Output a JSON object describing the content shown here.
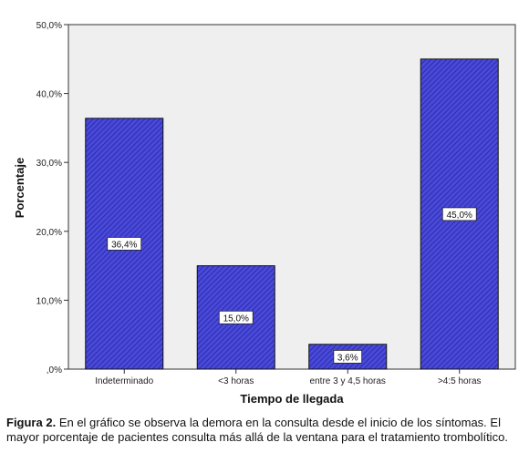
{
  "chart_data": {
    "type": "bar",
    "categories": [
      "Indeterminado",
      "<3 horas",
      "entre 3 y 4,5 horas",
      ">4:5 horas"
    ],
    "values": [
      36.4,
      15.0,
      3.6,
      45.0
    ],
    "data_labels": [
      "36,4%",
      "15,0%",
      "3,6%",
      "45,0%"
    ],
    "xlabel": "Tiempo de llegada",
    "ylabel": "Porcentaje",
    "ylim": [
      0,
      50
    ],
    "yticks": [
      0,
      10,
      20,
      30,
      40,
      50
    ],
    "ytick_labels": [
      ",0%",
      "10,0%",
      "20,0%",
      "30,0%",
      "40,0%",
      "50,0%"
    ],
    "grid": false,
    "legend": "none"
  },
  "caption": {
    "label": "Figura 2.",
    "text": "En el gráfico se observa la demora en la consulta desde el inicio de los síntomas. El mayor porcentaje de pacientes consulta más allá de la ventana para el tratamiento trombolítico."
  },
  "colors": {
    "plot_background": "#efefef",
    "bar_fill": "#4a4ad8",
    "bar_hatch": "#2323a8",
    "bar_border": "#111111"
  }
}
